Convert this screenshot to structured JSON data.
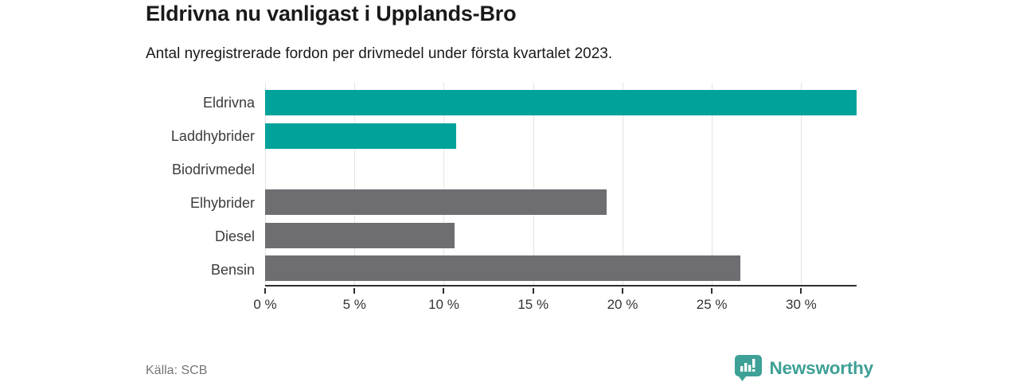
{
  "header": {
    "title": "Eldrivna nu vanligast i Upplands-Bro",
    "subtitle": "Antal nyregistrerade fordon per drivmedel under första kvartalet 2023."
  },
  "chart_data": {
    "type": "bar",
    "orientation": "horizontal",
    "title": "Eldrivna nu vanligast i Upplands-Bro",
    "subtitle": "Antal nyregistrerade fordon per drivmedel under första kvartalet 2023.",
    "categories": [
      "Eldrivna",
      "Laddhybrider",
      "Biodrivmedel",
      "Elhybrider",
      "Diesel",
      "Bensin"
    ],
    "values": [
      33.1,
      10.7,
      0,
      19.1,
      10.6,
      26.6
    ],
    "unit": "%",
    "bar_colors": [
      "#00a29b",
      "#00a29b",
      null,
      "#6d6d72",
      "#6d6d72",
      "#6d6d72"
    ],
    "highlight_color": "#00a29b",
    "default_color": "#6d6d72",
    "xlim": [
      0,
      33.1
    ],
    "xticks": [
      0,
      5,
      10,
      15,
      20,
      25,
      30
    ],
    "xtick_labels": [
      "0 %",
      "5 %",
      "10 %",
      "15 %",
      "20 %",
      "25 %",
      "30 %"
    ],
    "xlabel": "",
    "ylabel": "",
    "grid": true,
    "legend": "none",
    "grid_color": "#e3e3e3",
    "axis_color": "#2e2e2e"
  },
  "footer": {
    "source": "Källa: SCB",
    "brand_name": "Newsworthy",
    "brand_color": "#3ea096"
  }
}
